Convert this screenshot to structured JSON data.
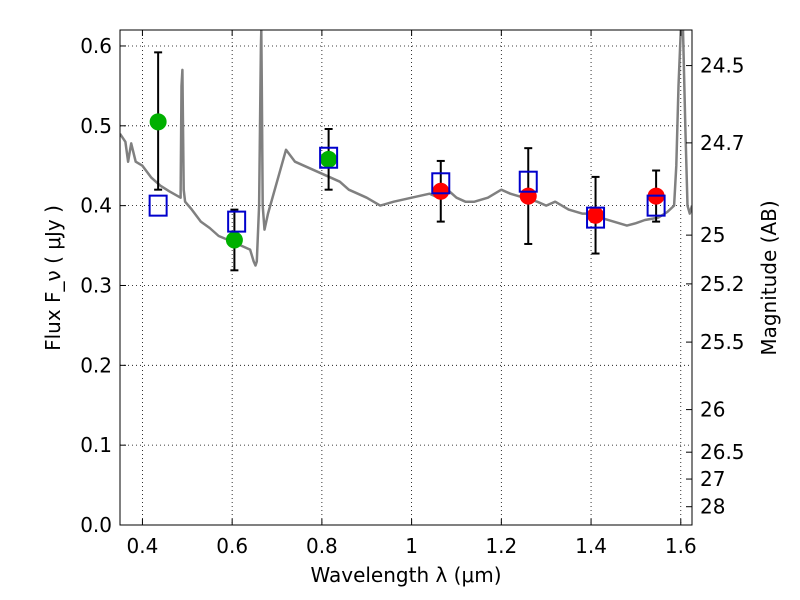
{
  "chart_data": {
    "type": "scatter",
    "xlabel": "Wavelength  λ (μm)",
    "ylabel": "Flux  F_ν  ( μJy )",
    "ylabel_right": "Magnitude (AB)",
    "xlim": [
      0.35,
      1.625
    ],
    "ylim": [
      0.0,
      0.62
    ],
    "grid": true,
    "x_ticks": [
      {
        "value": 0.4,
        "label": "0.4"
      },
      {
        "value": 0.6,
        "label": "0.6"
      },
      {
        "value": 0.8,
        "label": "0.8"
      },
      {
        "value": 1.0,
        "label": "1"
      },
      {
        "value": 1.2,
        "label": "1.2"
      },
      {
        "value": 1.4,
        "label": "1.4"
      },
      {
        "value": 1.6,
        "label": "1.6"
      }
    ],
    "y_ticks": [
      {
        "value": 0.0,
        "label": "0.0"
      },
      {
        "value": 0.1,
        "label": "0.1"
      },
      {
        "value": 0.2,
        "label": "0.2"
      },
      {
        "value": 0.3,
        "label": "0.3"
      },
      {
        "value": 0.4,
        "label": "0.4"
      },
      {
        "value": 0.5,
        "label": "0.5"
      },
      {
        "value": 0.6,
        "label": "0.6"
      }
    ],
    "right_ticks": [
      {
        "mag": 24.5,
        "label": "24.5"
      },
      {
        "mag": 24.7,
        "label": "24.7"
      },
      {
        "mag": 25.0,
        "label": "25"
      },
      {
        "mag": 25.2,
        "label": "25.2"
      },
      {
        "mag": 25.5,
        "label": "25.5"
      },
      {
        "mag": 26.0,
        "label": "26"
      },
      {
        "mag": 26.5,
        "label": "26.5"
      },
      {
        "mag": 27.0,
        "label": "27"
      },
      {
        "mag": 28.0,
        "label": "28"
      }
    ],
    "series": [
      {
        "type": "line",
        "color": "#808080",
        "x": [
          0.35,
          0.362,
          0.368,
          0.375,
          0.385,
          0.4,
          0.42,
          0.44,
          0.46,
          0.485,
          0.487,
          0.489,
          0.492,
          0.495,
          0.51,
          0.53,
          0.55,
          0.57,
          0.6,
          0.62,
          0.64,
          0.648,
          0.652,
          0.655,
          0.66,
          0.662,
          0.664,
          0.665,
          0.666,
          0.668,
          0.672,
          0.68,
          0.7,
          0.72,
          0.74,
          0.76,
          0.78,
          0.8,
          0.82,
          0.84,
          0.86,
          0.88,
          0.9,
          0.93,
          0.96,
          1.0,
          1.04,
          1.06,
          1.08,
          1.1,
          1.12,
          1.14,
          1.17,
          1.2,
          1.22,
          1.25,
          1.28,
          1.3,
          1.32,
          1.35,
          1.38,
          1.4,
          1.42,
          1.45,
          1.48,
          1.5,
          1.52,
          1.55,
          1.57,
          1.585,
          1.59,
          1.595,
          1.6,
          1.605,
          1.61,
          1.615,
          1.62,
          1.625
        ],
        "y": [
          0.49,
          0.48,
          0.455,
          0.478,
          0.455,
          0.45,
          0.435,
          0.425,
          0.418,
          0.41,
          0.55,
          0.57,
          0.42,
          0.405,
          0.395,
          0.38,
          0.372,
          0.362,
          0.355,
          0.35,
          0.345,
          0.33,
          0.325,
          0.33,
          0.4,
          0.5,
          0.6,
          0.62,
          0.55,
          0.4,
          0.37,
          0.39,
          0.43,
          0.47,
          0.455,
          0.45,
          0.445,
          0.44,
          0.435,
          0.43,
          0.42,
          0.415,
          0.41,
          0.4,
          0.405,
          0.41,
          0.415,
          0.41,
          0.42,
          0.41,
          0.405,
          0.405,
          0.41,
          0.42,
          0.415,
          0.41,
          0.405,
          0.4,
          0.405,
          0.395,
          0.39,
          0.39,
          0.385,
          0.38,
          0.375,
          0.378,
          0.382,
          0.385,
          0.392,
          0.4,
          0.45,
          0.55,
          0.62,
          0.62,
          0.5,
          0.4,
          0.39,
          0.4
        ]
      },
      {
        "type": "scatter",
        "marker": "circle",
        "color": "#00b000",
        "x": [
          0.435,
          0.605,
          0.815
        ],
        "y": [
          0.505,
          0.357,
          0.458
        ],
        "yerr": [
          [
            0.085,
            0.087
          ],
          [
            0.038,
            0.038
          ],
          [
            0.038,
            0.038
          ]
        ]
      },
      {
        "type": "scatter",
        "marker": "circle",
        "color": "#ff0000",
        "x": [
          1.065,
          1.26,
          1.41,
          1.545
        ],
        "y": [
          0.418,
          0.412,
          0.388,
          0.412
        ],
        "yerr": [
          [
            0.038,
            0.038
          ],
          [
            0.06,
            0.06
          ],
          [
            0.048,
            0.048
          ],
          [
            0.032,
            0.032
          ]
        ]
      },
      {
        "type": "scatter",
        "marker": "square-open",
        "color": "#0000cc",
        "x": [
          0.435,
          0.61,
          0.815,
          1.065,
          1.26,
          1.41,
          1.545
        ],
        "y": [
          0.4,
          0.38,
          0.46,
          0.428,
          0.43,
          0.385,
          0.4
        ]
      }
    ]
  }
}
